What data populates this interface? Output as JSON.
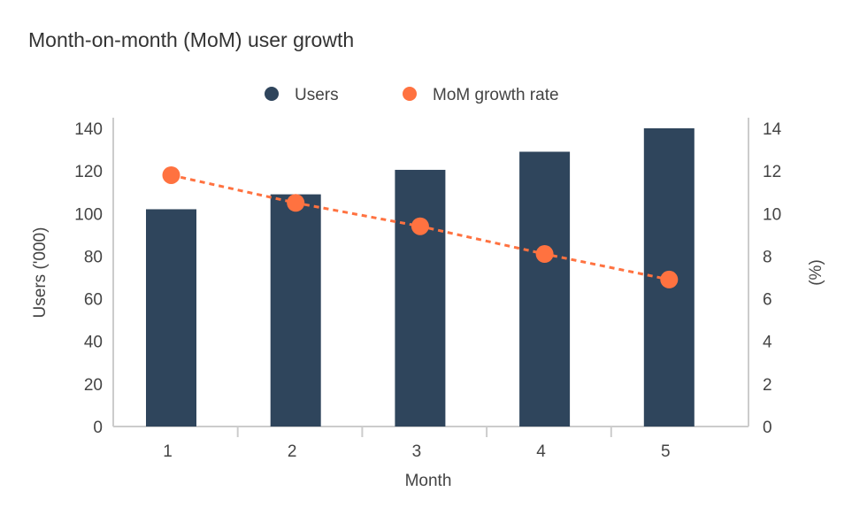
{
  "chart_data": {
    "type": "bar+line",
    "title": "Month-on-month (MoM) user growth",
    "xlabel": "Month",
    "ylabel": "Users ('000)",
    "y2label": "(%)",
    "categories": [
      "1",
      "2",
      "3",
      "4",
      "5"
    ],
    "ylim": [
      0,
      140
    ],
    "y2lim": [
      0,
      14
    ],
    "yticks": [
      0,
      20,
      40,
      60,
      80,
      100,
      120,
      140
    ],
    "y2ticks": [
      0,
      2,
      4,
      6,
      8,
      10,
      12,
      14
    ],
    "grid": false,
    "legend_placement": "top-center",
    "series": [
      {
        "name": "Users",
        "type": "bar",
        "axis": "left",
        "color": "#2f455c",
        "values": [
          102,
          109,
          120.5,
          129,
          140
        ]
      },
      {
        "name": "MoM growth rate",
        "type": "line",
        "style": "dotted",
        "axis": "right",
        "color": "#ff7240",
        "values": [
          11.8,
          10.5,
          9.4,
          8.1,
          6.9
        ]
      }
    ]
  }
}
